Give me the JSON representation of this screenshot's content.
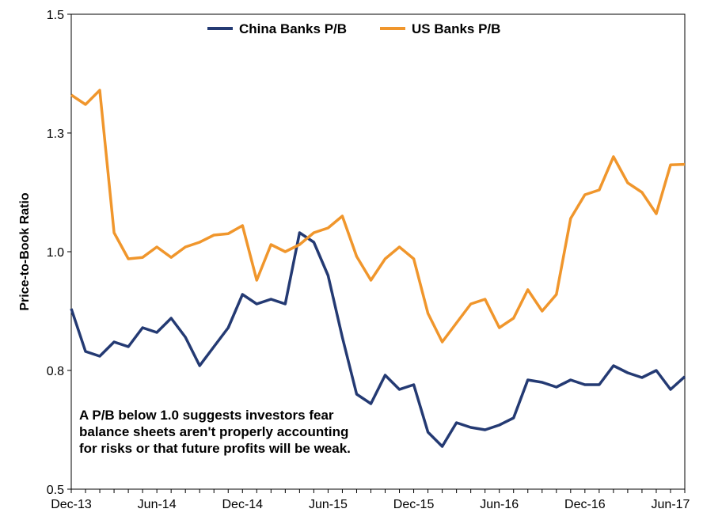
{
  "chart_data": {
    "type": "line",
    "title": "",
    "xlabel": "",
    "ylabel": "Price-to-Book Ratio",
    "ylim": [
      0.5,
      1.5
    ],
    "yticks": [
      "0.5",
      "0.8",
      "1.0",
      "1.3",
      "1.5"
    ],
    "ytick_values": [
      0.5,
      0.75,
      1.0,
      1.25,
      1.5
    ],
    "xticks": [
      "Dec-13",
      "Jun-14",
      "Dec-14",
      "Jun-15",
      "Dec-15",
      "Jun-16",
      "Dec-16",
      "Jun-17"
    ],
    "xtick_index": [
      0,
      6,
      12,
      18,
      24,
      30,
      36,
      42
    ],
    "x": [
      "Dec-13",
      "Jan-14",
      "Feb-14",
      "Mar-14",
      "Apr-14",
      "May-14",
      "Jun-14",
      "Jul-14",
      "Aug-14",
      "Sep-14",
      "Oct-14",
      "Nov-14",
      "Dec-14",
      "Jan-15",
      "Feb-15",
      "Mar-15",
      "Apr-15",
      "May-15",
      "Jun-15",
      "Jul-15",
      "Aug-15",
      "Sep-15",
      "Oct-15",
      "Nov-15",
      "Dec-15",
      "Jan-16",
      "Feb-16",
      "Mar-16",
      "Apr-16",
      "May-16",
      "Jun-16",
      "Jul-16",
      "Aug-16",
      "Sep-16",
      "Oct-16",
      "Nov-16",
      "Dec-16",
      "Jan-17",
      "Feb-17",
      "Mar-17",
      "Apr-17",
      "May-17",
      "Jun-17",
      "Jul-17"
    ],
    "grid": false,
    "legend_position": "top",
    "series": [
      {
        "name": "China Banks P/B",
        "color": "#243a73",
        "values": [
          0.88,
          0.79,
          0.78,
          0.81,
          0.8,
          0.84,
          0.83,
          0.86,
          0.82,
          0.76,
          0.8,
          0.84,
          0.91,
          0.89,
          0.9,
          0.89,
          1.04,
          1.02,
          0.95,
          0.82,
          0.7,
          0.68,
          0.74,
          0.71,
          0.72,
          0.62,
          0.59,
          0.64,
          0.63,
          0.625,
          0.635,
          0.65,
          0.73,
          0.725,
          0.715,
          0.73,
          0.72,
          0.72,
          0.76,
          0.745,
          0.735,
          0.75,
          0.71,
          0.737
        ]
      },
      {
        "name": "US Banks P/B",
        "color": "#f0962c",
        "values": [
          1.33,
          1.31,
          1.34,
          1.04,
          0.985,
          0.988,
          1.01,
          0.988,
          1.01,
          1.02,
          1.035,
          1.038,
          1.055,
          0.94,
          1.015,
          1.0,
          1.015,
          1.04,
          1.05,
          1.075,
          0.99,
          0.94,
          0.985,
          1.01,
          0.985,
          0.87,
          0.81,
          0.85,
          0.89,
          0.9,
          0.84,
          0.86,
          0.92,
          0.875,
          0.91,
          1.07,
          1.12,
          1.13,
          1.2,
          1.145,
          1.125,
          1.08,
          1.183,
          1.184
        ]
      }
    ],
    "annotation": "A P/B below 1.0 suggests investors fear balance sheets aren't properly accounting for risks or that future profits will be weak."
  }
}
